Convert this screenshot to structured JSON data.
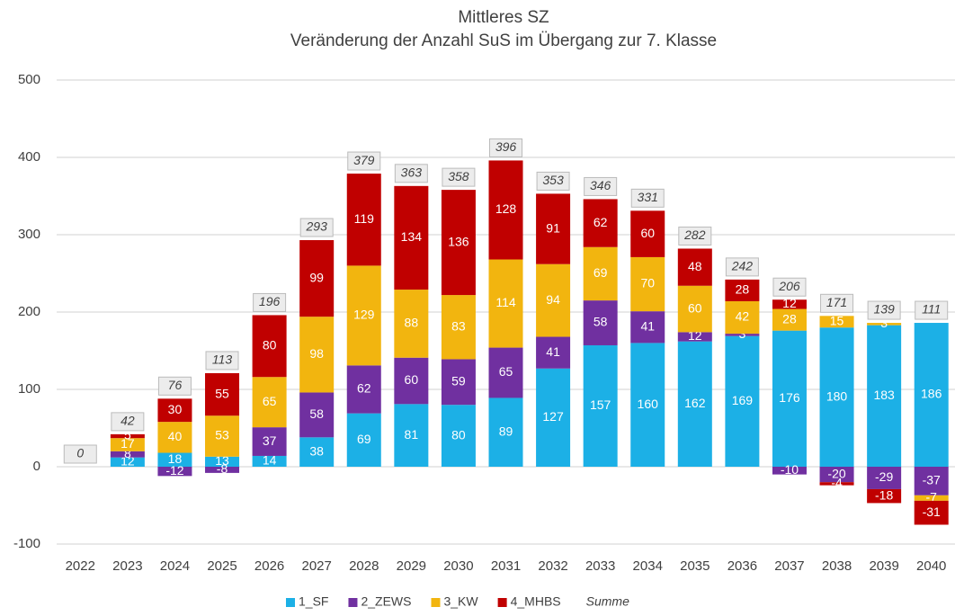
{
  "chart_data": {
    "type": "stacked-bar",
    "title": "Mittleres SZ",
    "subtitle": "Veränderung der Anzahl SuS im Übergang zur 7. Klasse",
    "categories": [
      "2022",
      "2023",
      "2024",
      "2025",
      "2026",
      "2027",
      "2028",
      "2029",
      "2030",
      "2031",
      "2032",
      "2033",
      "2034",
      "2035",
      "2036",
      "2037",
      "2038",
      "2039",
      "2040"
    ],
    "series": [
      {
        "name": "1_SF",
        "color": "#1cb0e6",
        "values": [
          0,
          12,
          18,
          13,
          14,
          38,
          69,
          81,
          80,
          89,
          127,
          157,
          160,
          162,
          169,
          176,
          180,
          183,
          186
        ]
      },
      {
        "name": "2_ZEWS",
        "color": "#7030a0",
        "values": [
          0,
          8,
          -12,
          -8,
          37,
          58,
          62,
          60,
          59,
          65,
          41,
          58,
          41,
          12,
          3,
          -10,
          -20,
          -29,
          -37
        ]
      },
      {
        "name": "3_KW",
        "color": "#f2b50f",
        "values": [
          0,
          17,
          40,
          53,
          65,
          98,
          129,
          88,
          83,
          114,
          94,
          69,
          70,
          60,
          42,
          28,
          15,
          3,
          -7
        ]
      },
      {
        "name": "4_MHBS",
        "color": "#c00000",
        "values": [
          0,
          5,
          30,
          55,
          80,
          99,
          119,
          134,
          136,
          128,
          91,
          62,
          60,
          48,
          28,
          12,
          -4,
          -18,
          -31
        ]
      }
    ],
    "totals": {
      "name": "Summe",
      "values": [
        0,
        42,
        76,
        113,
        196,
        293,
        379,
        363,
        358,
        396,
        353,
        346,
        331,
        282,
        242,
        206,
        171,
        139,
        111
      ]
    },
    "ylim": [
      -100,
      500
    ],
    "yticks": [
      -100,
      0,
      100,
      200,
      300,
      400,
      500
    ],
    "grid": true
  }
}
